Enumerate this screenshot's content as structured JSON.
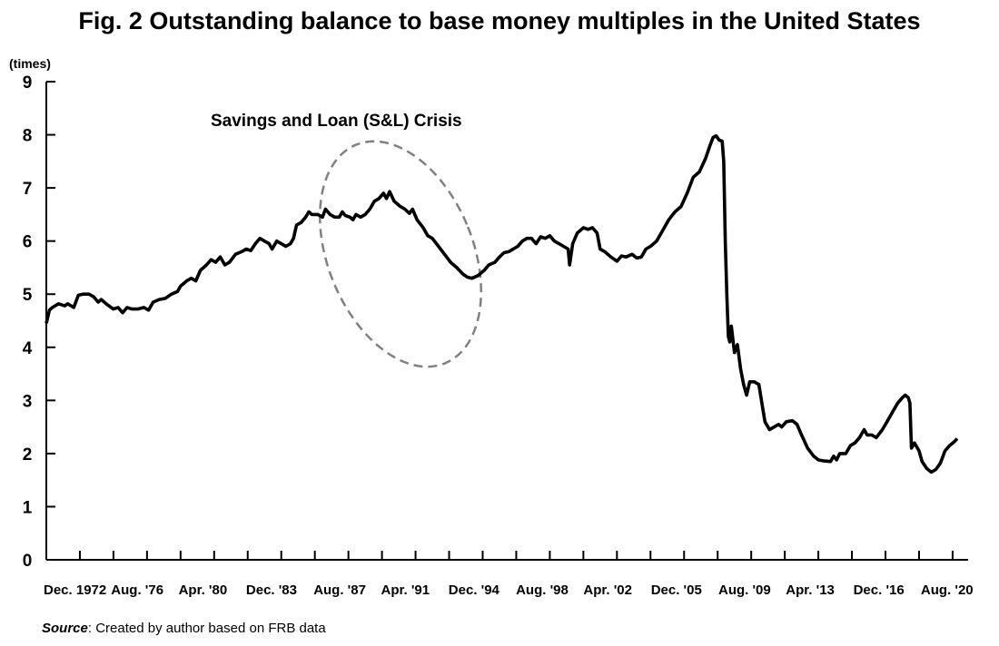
{
  "title": "Fig. 2 Outstanding balance to base money multiples in the United States",
  "source": {
    "label": "Source",
    "text": ": Created by author based on FRB data"
  },
  "chart_data": {
    "type": "line",
    "title": "Fig. 2 Outstanding balance to base money multiples in the United States",
    "xlabel": "",
    "ylabel": "(times)",
    "ylim": [
      0,
      9
    ],
    "yticks": [
      "0",
      "1",
      "2",
      "3",
      "4",
      "5",
      "6",
      "7",
      "8",
      "9"
    ],
    "x_unit": "months since Dec. 1972",
    "xlim": [
      0,
      610
    ],
    "xtick_labels": [
      {
        "label": "Dec. 1972",
        "month": 0
      },
      {
        "label": "Aug. '76",
        "month": 44
      },
      {
        "label": "Apr. '80",
        "month": 88
      },
      {
        "label": "Dec. '83",
        "month": 132
      },
      {
        "label": "Aug. '87",
        "month": 176
      },
      {
        "label": "Apr. '91",
        "month": 220
      },
      {
        "label": "Dec. '94",
        "month": 264
      },
      {
        "label": "Aug. '98",
        "month": 308
      },
      {
        "label": "Apr. '02",
        "month": 352
      },
      {
        "label": "Dec. '05",
        "month": 396
      },
      {
        "label": "Aug. '09",
        "month": 440
      },
      {
        "label": "Apr. '13",
        "month": 484
      },
      {
        "label": "Dec. '16",
        "month": 528
      },
      {
        "label": "Aug. '20",
        "month": 572
      }
    ],
    "minor_tick_step_months": 22,
    "grid": false,
    "legend": "none",
    "annotation": {
      "text": "Savings and Loan (S&L) Crisis",
      "period_months": [
        183,
        276
      ],
      "style": "dashed ellipse"
    },
    "series": [
      {
        "name": "Outstanding balance to base money multiple",
        "points": [
          [
            0,
            4.45
          ],
          [
            2,
            4.7
          ],
          [
            4,
            4.75
          ],
          [
            8,
            4.82
          ],
          [
            12,
            4.78
          ],
          [
            14,
            4.82
          ],
          [
            18,
            4.75
          ],
          [
            21,
            4.98
          ],
          [
            24,
            5.0
          ],
          [
            28,
            5.0
          ],
          [
            31,
            4.95
          ],
          [
            34,
            4.85
          ],
          [
            36,
            4.9
          ],
          [
            40,
            4.8
          ],
          [
            44,
            4.72
          ],
          [
            47,
            4.75
          ],
          [
            50,
            4.65
          ],
          [
            53,
            4.75
          ],
          [
            56,
            4.72
          ],
          [
            60,
            4.72
          ],
          [
            64,
            4.75
          ],
          [
            67,
            4.7
          ],
          [
            70,
            4.85
          ],
          [
            74,
            4.9
          ],
          [
            78,
            4.92
          ],
          [
            82,
            5.0
          ],
          [
            86,
            5.05
          ],
          [
            88,
            5.15
          ],
          [
            92,
            5.25
          ],
          [
            95,
            5.3
          ],
          [
            98,
            5.25
          ],
          [
            101,
            5.45
          ],
          [
            105,
            5.55
          ],
          [
            108,
            5.65
          ],
          [
            111,
            5.6
          ],
          [
            114,
            5.7
          ],
          [
            117,
            5.55
          ],
          [
            120,
            5.6
          ],
          [
            124,
            5.75
          ],
          [
            128,
            5.8
          ],
          [
            131,
            5.85
          ],
          [
            134,
            5.82
          ],
          [
            137,
            5.95
          ],
          [
            140,
            6.05
          ],
          [
            143,
            6.0
          ],
          [
            146,
            5.95
          ],
          [
            148,
            5.85
          ],
          [
            151,
            6.0
          ],
          [
            154,
            5.95
          ],
          [
            157,
            5.9
          ],
          [
            160,
            5.95
          ],
          [
            162,
            6.05
          ],
          [
            164,
            6.3
          ],
          [
            167,
            6.35
          ],
          [
            170,
            6.45
          ],
          [
            172,
            6.55
          ],
          [
            174,
            6.5
          ],
          [
            178,
            6.5
          ],
          [
            181,
            6.45
          ],
          [
            183,
            6.6
          ],
          [
            186,
            6.5
          ],
          [
            189,
            6.45
          ],
          [
            192,
            6.45
          ],
          [
            194,
            6.55
          ],
          [
            196,
            6.48
          ],
          [
            199,
            6.45
          ],
          [
            201,
            6.4
          ],
          [
            203,
            6.5
          ],
          [
            206,
            6.45
          ],
          [
            209,
            6.5
          ],
          [
            212,
            6.6
          ],
          [
            215,
            6.75
          ],
          [
            218,
            6.8
          ],
          [
            221,
            6.9
          ],
          [
            223,
            6.8
          ],
          [
            225,
            6.93
          ],
          [
            228,
            6.75
          ],
          [
            232,
            6.65
          ],
          [
            235,
            6.6
          ],
          [
            238,
            6.52
          ],
          [
            240,
            6.6
          ],
          [
            243,
            6.4
          ],
          [
            247,
            6.25
          ],
          [
            250,
            6.1
          ],
          [
            253,
            6.05
          ],
          [
            257,
            5.9
          ],
          [
            261,
            5.75
          ],
          [
            265,
            5.6
          ],
          [
            269,
            5.5
          ],
          [
            273,
            5.38
          ],
          [
            276,
            5.32
          ],
          [
            279,
            5.3
          ],
          [
            283,
            5.35
          ],
          [
            287,
            5.45
          ],
          [
            290,
            5.55
          ],
          [
            294,
            5.6
          ],
          [
            297,
            5.7
          ],
          [
            300,
            5.78
          ],
          [
            303,
            5.8
          ],
          [
            306,
            5.85
          ],
          [
            309,
            5.9
          ],
          [
            312,
            6.0
          ],
          [
            315,
            6.05
          ],
          [
            318,
            6.05
          ],
          [
            321,
            5.95
          ],
          [
            324,
            6.08
          ],
          [
            327,
            6.05
          ],
          [
            330,
            6.1
          ],
          [
            333,
            6.0
          ],
          [
            336,
            5.95
          ],
          [
            339,
            5.9
          ],
          [
            342,
            5.85
          ],
          [
            343,
            5.55
          ],
          [
            345,
            5.95
          ],
          [
            348,
            6.15
          ],
          [
            352,
            6.25
          ],
          [
            355,
            6.22
          ],
          [
            358,
            6.25
          ],
          [
            361,
            6.15
          ],
          [
            363,
            5.85
          ],
          [
            366,
            5.8
          ],
          [
            370,
            5.7
          ],
          [
            374,
            5.62
          ],
          [
            377,
            5.72
          ],
          [
            380,
            5.7
          ],
          [
            384,
            5.75
          ],
          [
            387,
            5.68
          ],
          [
            390,
            5.7
          ],
          [
            393,
            5.85
          ],
          [
            396,
            5.9
          ],
          [
            400,
            6.0
          ],
          [
            404,
            6.2
          ],
          [
            408,
            6.4
          ],
          [
            412,
            6.55
          ],
          [
            416,
            6.65
          ],
          [
            420,
            6.9
          ],
          [
            424,
            7.2
          ],
          [
            428,
            7.3
          ],
          [
            432,
            7.55
          ],
          [
            435,
            7.8
          ],
          [
            437,
            7.95
          ],
          [
            439,
            7.98
          ],
          [
            441,
            7.9
          ],
          [
            443,
            7.88
          ],
          [
            444,
            7.5
          ],
          [
            445,
            6.0
          ],
          [
            446,
            5.0
          ],
          [
            447,
            4.2
          ],
          [
            448,
            4.1
          ],
          [
            449,
            4.4
          ],
          [
            451,
            3.9
          ],
          [
            453,
            4.05
          ],
          [
            455,
            3.6
          ],
          [
            457,
            3.3
          ],
          [
            459,
            3.1
          ],
          [
            461,
            3.35
          ],
          [
            464,
            3.35
          ],
          [
            467,
            3.3
          ],
          [
            469,
            2.95
          ],
          [
            471,
            2.6
          ],
          [
            474,
            2.45
          ],
          [
            477,
            2.5
          ],
          [
            480,
            2.55
          ],
          [
            482,
            2.5
          ],
          [
            485,
            2.6
          ],
          [
            489,
            2.62
          ],
          [
            492,
            2.55
          ],
          [
            495,
            2.35
          ],
          [
            499,
            2.1
          ],
          [
            503,
            1.95
          ],
          [
            506,
            1.88
          ],
          [
            510,
            1.86
          ],
          [
            514,
            1.85
          ],
          [
            516,
            1.95
          ],
          [
            518,
            1.88
          ],
          [
            520,
            2.0
          ],
          [
            524,
            2.0
          ],
          [
            527,
            2.15
          ],
          [
            530,
            2.2
          ],
          [
            533,
            2.3
          ],
          [
            536,
            2.45
          ],
          [
            538,
            2.35
          ],
          [
            541,
            2.35
          ],
          [
            544,
            2.3
          ],
          [
            548,
            2.45
          ],
          [
            551,
            2.6
          ],
          [
            555,
            2.8
          ],
          [
            558,
            2.95
          ],
          [
            561,
            3.05
          ],
          [
            563,
            3.1
          ],
          [
            565,
            3.05
          ],
          [
            566,
            2.95
          ],
          [
            567,
            2.1
          ],
          [
            569,
            2.2
          ],
          [
            572,
            2.05
          ],
          [
            574,
            1.85
          ],
          [
            577,
            1.72
          ],
          [
            580,
            1.65
          ],
          [
            583,
            1.7
          ],
          [
            586,
            1.82
          ],
          [
            589,
            2.05
          ],
          [
            592,
            2.15
          ],
          [
            595,
            2.22
          ],
          [
            597,
            2.28
          ]
        ]
      }
    ]
  }
}
